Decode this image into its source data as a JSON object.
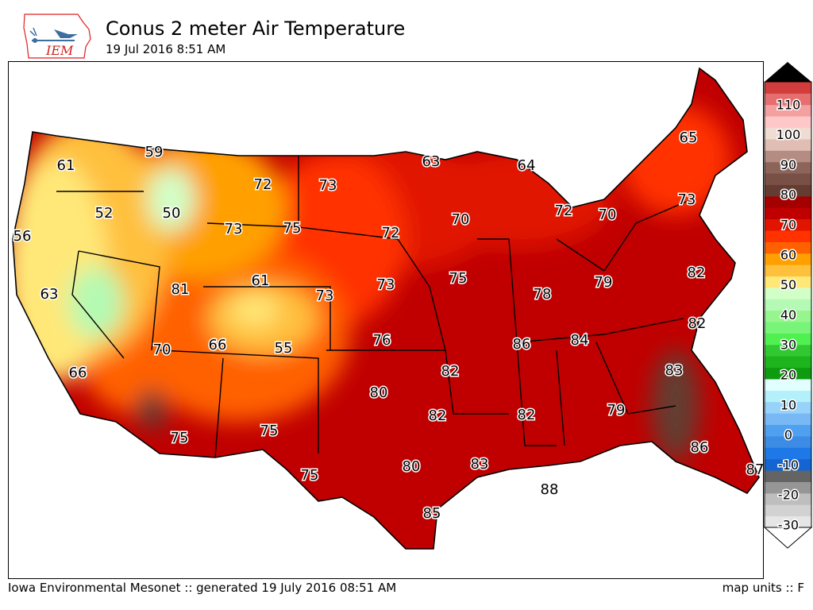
{
  "header": {
    "logo_text": "IEM",
    "title": "Conus 2 meter Air Temperature",
    "subtitle": "19 Jul 2016 8:51 AM"
  },
  "footer": {
    "left": "Iowa Environmental Mesonet :: generated 19 July 2016 08:51 AM",
    "right": "map units :: F"
  },
  "colorbar": {
    "labels": [
      "-30",
      "-20",
      "-10",
      "0",
      "10",
      "20",
      "30",
      "40",
      "50",
      "60",
      "70",
      "80",
      "90",
      "100",
      "110"
    ],
    "colors": [
      "#e6e6e6",
      "#d2d2d2",
      "#bebebe",
      "#969696",
      "#646464",
      "#1464d2",
      "#1e78e6",
      "#3c8ce6",
      "#50a0f0",
      "#78b9f5",
      "#96d2fa",
      "#b4f0fa",
      "#e1ffff",
      "#0f9b0f",
      "#1eb41e",
      "#32c832",
      "#50f050",
      "#78f578",
      "#96f58c",
      "#b4fab4",
      "#d2ffc8",
      "#ffe878",
      "#ffc03c",
      "#ffa000",
      "#ff6000",
      "#ff3200",
      "#e11400",
      "#c00000",
      "#a50000",
      "#643c32",
      "#785046",
      "#8c645a",
      "#b48c82",
      "#e1beb4",
      "#f0dcd2",
      "#ffc8c8",
      "#f5a0a0",
      "#e66e6e",
      "#d23c3c"
    ]
  },
  "stations": [
    "61",
    "59",
    "52",
    "50",
    "56",
    "63",
    "66",
    "81",
    "73",
    "72",
    "73",
    "75",
    "61",
    "73",
    "70",
    "66",
    "55",
    "75",
    "75",
    "75",
    "80",
    "85",
    "83",
    "88",
    "80",
    "82",
    "82",
    "76",
    "73",
    "72",
    "70",
    "63",
    "64",
    "72",
    "70",
    "65",
    "73",
    "75",
    "78",
    "79",
    "82",
    "82",
    "86",
    "84",
    "83",
    "79",
    "82",
    "86",
    "87"
  ]
}
